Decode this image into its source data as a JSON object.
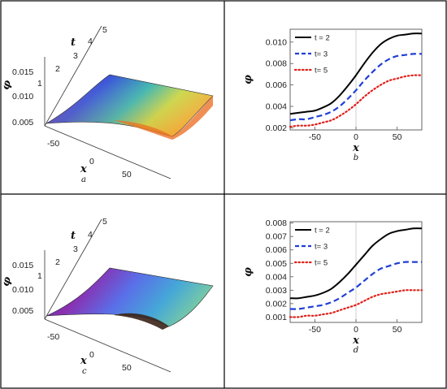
{
  "chart_data": [
    {
      "type": "surface",
      "panel_label": "a",
      "x_axis_label": "x",
      "t_axis_label": "t",
      "z_axis_label": "φ",
      "x_ticks": [
        "-50",
        "0",
        "50"
      ],
      "t_ticks": [
        "1",
        "2",
        "3",
        "4",
        "5"
      ],
      "z_ticks": [
        "0.005",
        "0.010",
        "0.015"
      ],
      "xlim": [
        -80,
        80
      ],
      "tlim": [
        1,
        5
      ],
      "zlim": [
        0.002,
        0.015
      ]
    },
    {
      "type": "line",
      "panel_label": "b",
      "xlabel": "x",
      "ylabel": "φ",
      "xlim": [
        -80,
        80
      ],
      "ylim": [
        0.0018,
        0.0112
      ],
      "x_ticks": [
        -50,
        0,
        50
      ],
      "x_tick_labels": [
        "-50",
        "0",
        "50"
      ],
      "y_ticks": [
        0.002,
        0.004,
        0.006,
        0.008,
        0.01
      ],
      "y_tick_labels": [
        "0.002",
        "0.004",
        "0.006",
        "0.008",
        "0.010"
      ],
      "legend_position": "top-left",
      "series": [
        {
          "name": "t = 2",
          "style": "solid",
          "color": "#000000",
          "x": [
            -80,
            -70,
            -60,
            -50,
            -40,
            -30,
            -20,
            -10,
            0,
            10,
            20,
            30,
            40,
            50,
            60,
            70,
            80
          ],
          "values": [
            0.0033,
            0.0034,
            0.0035,
            0.0036,
            0.0039,
            0.0043,
            0.005,
            0.0059,
            0.0069,
            0.008,
            0.009,
            0.0098,
            0.0103,
            0.0106,
            0.0107,
            0.0108,
            0.0108
          ]
        },
        {
          "name": "t= 3",
          "style": "dashed",
          "color": "#1f3fd6",
          "x": [
            -80,
            -70,
            -60,
            -50,
            -40,
            -30,
            -20,
            -10,
            0,
            10,
            20,
            30,
            40,
            50,
            60,
            70,
            80
          ],
          "values": [
            0.0027,
            0.0028,
            0.0028,
            0.003,
            0.0032,
            0.0035,
            0.004,
            0.0047,
            0.0055,
            0.0064,
            0.0072,
            0.0079,
            0.0084,
            0.0087,
            0.0088,
            0.0089,
            0.0089
          ]
        },
        {
          "name": "t= 5",
          "style": "dotted",
          "color": "#e0201a",
          "x": [
            -80,
            -70,
            -60,
            -50,
            -40,
            -30,
            -20,
            -10,
            0,
            10,
            20,
            30,
            40,
            50,
            60,
            70,
            80
          ],
          "values": [
            0.0021,
            0.0022,
            0.0022,
            0.0023,
            0.0025,
            0.0027,
            0.0031,
            0.0036,
            0.0042,
            0.0049,
            0.0055,
            0.006,
            0.0064,
            0.0066,
            0.0068,
            0.0069,
            0.0069
          ]
        }
      ]
    },
    {
      "type": "surface",
      "panel_label": "c",
      "x_axis_label": "x",
      "t_axis_label": "t",
      "z_axis_label": "φ",
      "x_ticks": [
        "-50",
        "0",
        "50"
      ],
      "t_ticks": [
        "1",
        "2",
        "3",
        "4",
        "5"
      ],
      "z_ticks": [
        "0.005",
        "0.010",
        "0.015"
      ],
      "xlim": [
        -80,
        80
      ],
      "tlim": [
        1,
        5
      ],
      "zlim": [
        0.001,
        0.015
      ]
    },
    {
      "type": "line",
      "panel_label": "d",
      "xlabel": "x",
      "ylabel": "φ",
      "xlim": [
        -80,
        80
      ],
      "ylim": [
        0.0006,
        0.0081
      ],
      "x_ticks": [
        -50,
        0,
        50
      ],
      "x_tick_labels": [
        "-50",
        "0",
        "50"
      ],
      "y_ticks": [
        0.001,
        0.002,
        0.003,
        0.004,
        0.005,
        0.006,
        0.007,
        0.008
      ],
      "y_tick_labels": [
        "0.001",
        "0.002",
        "0.003",
        "0.004",
        "0.005",
        "0.006",
        "0.007",
        "0.008"
      ],
      "legend_position": "top-left",
      "series": [
        {
          "name": "t = 2",
          "style": "solid",
          "color": "#000000",
          "x": [
            -80,
            -70,
            -60,
            -50,
            -40,
            -30,
            -20,
            -10,
            0,
            10,
            20,
            30,
            40,
            50,
            60,
            70,
            80
          ],
          "values": [
            0.0024,
            0.0024,
            0.0025,
            0.0026,
            0.0028,
            0.0031,
            0.0036,
            0.0042,
            0.0049,
            0.0056,
            0.0063,
            0.0068,
            0.0072,
            0.0074,
            0.0075,
            0.0076,
            0.0076
          ]
        },
        {
          "name": "t= 3",
          "style": "dashed",
          "color": "#1f3fd6",
          "x": [
            -80,
            -70,
            -60,
            -50,
            -40,
            -30,
            -20,
            -10,
            0,
            10,
            20,
            30,
            40,
            50,
            60,
            70,
            80
          ],
          "values": [
            0.0016,
            0.0016,
            0.0017,
            0.0018,
            0.0019,
            0.0021,
            0.0024,
            0.0028,
            0.0032,
            0.0037,
            0.0042,
            0.0046,
            0.0048,
            0.005,
            0.0051,
            0.0051,
            0.0051
          ]
        },
        {
          "name": "t= 5",
          "style": "dotted",
          "color": "#e0201a",
          "x": [
            -80,
            -70,
            -60,
            -50,
            -40,
            -30,
            -20,
            -10,
            0,
            10,
            20,
            30,
            40,
            50,
            60,
            70,
            80
          ],
          "values": [
            0.001,
            0.001,
            0.0011,
            0.0011,
            0.0012,
            0.0013,
            0.0015,
            0.0017,
            0.0019,
            0.0022,
            0.0025,
            0.0027,
            0.0028,
            0.0029,
            0.003,
            0.003,
            0.003
          ]
        }
      ]
    }
  ]
}
